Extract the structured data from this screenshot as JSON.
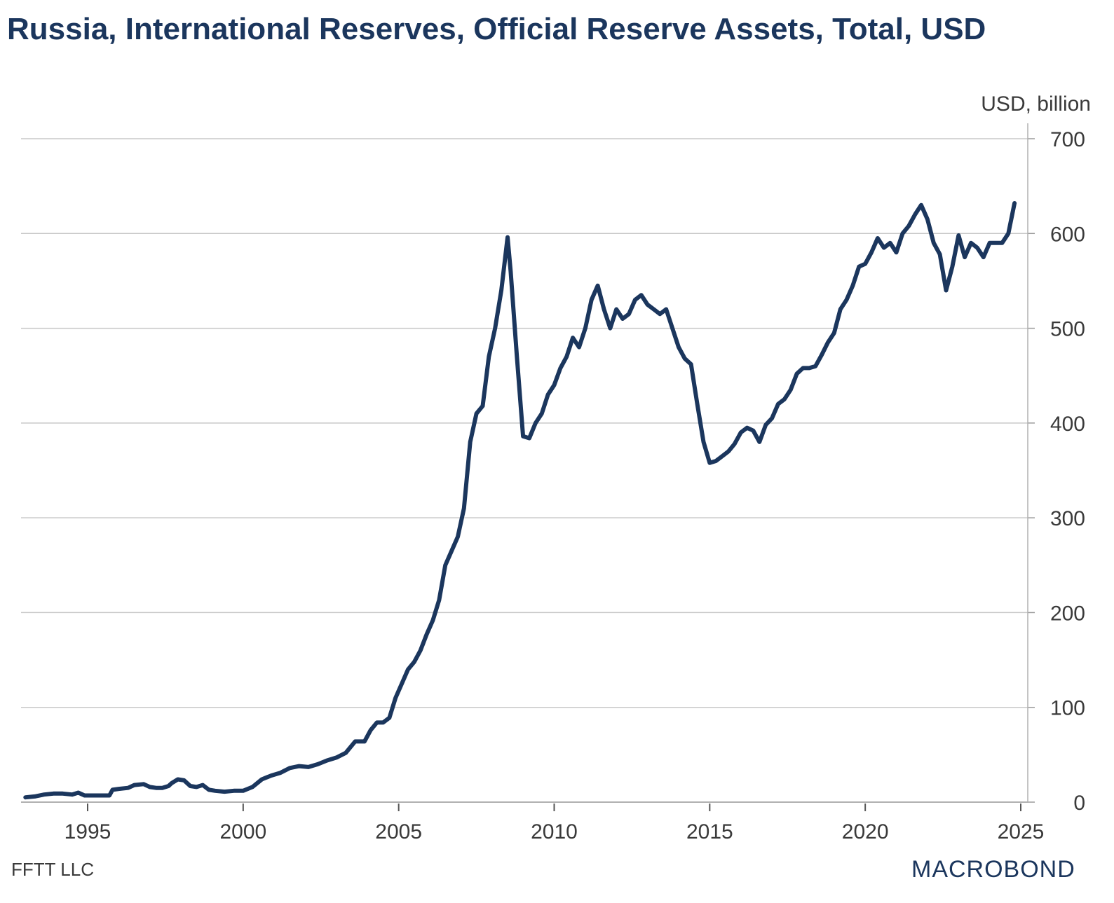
{
  "chart_data": {
    "type": "line",
    "title": "Russia, International Reserves, Official Reserve Assets, Total, USD",
    "unit_label": "USD, billion",
    "xlabel": "",
    "ylabel": "USD, billion",
    "xlim": [
      1992.9,
      2025.5
    ],
    "ylim": [
      0,
      700
    ],
    "yticks": [
      0,
      100,
      200,
      300,
      400,
      500,
      600,
      700
    ],
    "xticks": [
      1995,
      2000,
      2005,
      2010,
      2015,
      2020,
      2025
    ],
    "grid": "horizontal",
    "y_axis_side": "right",
    "legend": "none",
    "line_color": "#1b365d",
    "series": [
      {
        "name": "Russia, International Reserves, Official Reserve Assets, Total",
        "x": [
          1993.0,
          1993.3,
          1993.6,
          1993.9,
          1994.2,
          1994.5,
          1994.7,
          1994.9,
          1995.1,
          1995.4,
          1995.7,
          1995.8,
          1996.0,
          1996.3,
          1996.5,
          1996.8,
          1997.0,
          1997.2,
          1997.4,
          1997.6,
          1997.7,
          1997.9,
          1998.1,
          1998.3,
          1998.5,
          1998.7,
          1998.9,
          1999.1,
          1999.4,
          1999.7,
          2000.0,
          2000.3,
          2000.6,
          2000.9,
          2001.2,
          2001.5,
          2001.8,
          2002.1,
          2002.4,
          2002.7,
          2003.0,
          2003.3,
          2003.6,
          2003.9,
          2004.1,
          2004.3,
          2004.5,
          2004.7,
          2004.9,
          2005.1,
          2005.3,
          2005.5,
          2005.7,
          2005.9,
          2006.1,
          2006.3,
          2006.5,
          2006.7,
          2006.9,
          2007.1,
          2007.3,
          2007.5,
          2007.7,
          2007.9,
          2008.1,
          2008.3,
          2008.5,
          2008.6,
          2008.8,
          2009.0,
          2009.2,
          2009.4,
          2009.6,
          2009.8,
          2010.0,
          2010.2,
          2010.4,
          2010.6,
          2010.8,
          2011.0,
          2011.2,
          2011.4,
          2011.6,
          2011.8,
          2012.0,
          2012.2,
          2012.4,
          2012.6,
          2012.8,
          2013.0,
          2013.2,
          2013.4,
          2013.6,
          2013.8,
          2014.0,
          2014.2,
          2014.4,
          2014.6,
          2014.8,
          2015.0,
          2015.2,
          2015.4,
          2015.6,
          2015.8,
          2016.0,
          2016.2,
          2016.4,
          2016.6,
          2016.8,
          2017.0,
          2017.2,
          2017.4,
          2017.6,
          2017.8,
          2018.0,
          2018.2,
          2018.4,
          2018.6,
          2018.8,
          2019.0,
          2019.2,
          2019.4,
          2019.6,
          2019.8,
          2020.0,
          2020.2,
          2020.4,
          2020.6,
          2020.8,
          2021.0,
          2021.2,
          2021.4,
          2021.6,
          2021.8,
          2022.0,
          2022.2,
          2022.4,
          2022.6,
          2022.8,
          2023.0,
          2023.2,
          2023.4,
          2023.6,
          2023.8,
          2024.0,
          2024.2,
          2024.4,
          2024.6,
          2024.8
        ],
        "values": [
          5,
          6,
          8,
          9,
          9,
          8,
          10,
          7,
          7,
          7,
          7,
          13,
          14,
          15,
          18,
          19,
          16,
          15,
          15,
          17,
          20,
          24,
          23,
          17,
          16,
          18,
          13,
          12,
          11,
          12,
          12,
          16,
          24,
          28,
          31,
          36,
          38,
          37,
          40,
          44,
          47,
          52,
          64,
          64,
          76,
          84,
          84,
          89,
          110,
          125,
          140,
          148,
          160,
          177,
          192,
          213,
          250,
          265,
          280,
          310,
          380,
          410,
          418,
          470,
          500,
          540,
          596,
          560,
          470,
          386,
          384,
          400,
          410,
          430,
          440,
          458,
          470,
          490,
          480,
          500,
          530,
          545,
          520,
          500,
          520,
          510,
          515,
          530,
          535,
          525,
          520,
          515,
          520,
          500,
          480,
          468,
          462,
          420,
          380,
          358,
          360,
          365,
          370,
          378,
          390,
          395,
          392,
          380,
          398,
          405,
          420,
          425,
          435,
          452,
          458,
          458,
          460,
          472,
          485,
          495,
          520,
          530,
          545,
          565,
          568,
          580,
          595,
          585,
          590,
          580,
          600,
          608,
          620,
          630,
          615,
          590,
          578,
          540,
          565,
          598,
          575,
          590,
          585,
          575,
          590,
          590,
          590,
          600,
          632
        ]
      }
    ]
  },
  "header": {
    "title": "Russia, International Reserves, Official Reserve Assets, Total, USD"
  },
  "footer": {
    "source": "FFTT LLC",
    "brand": "MACROBOND"
  }
}
